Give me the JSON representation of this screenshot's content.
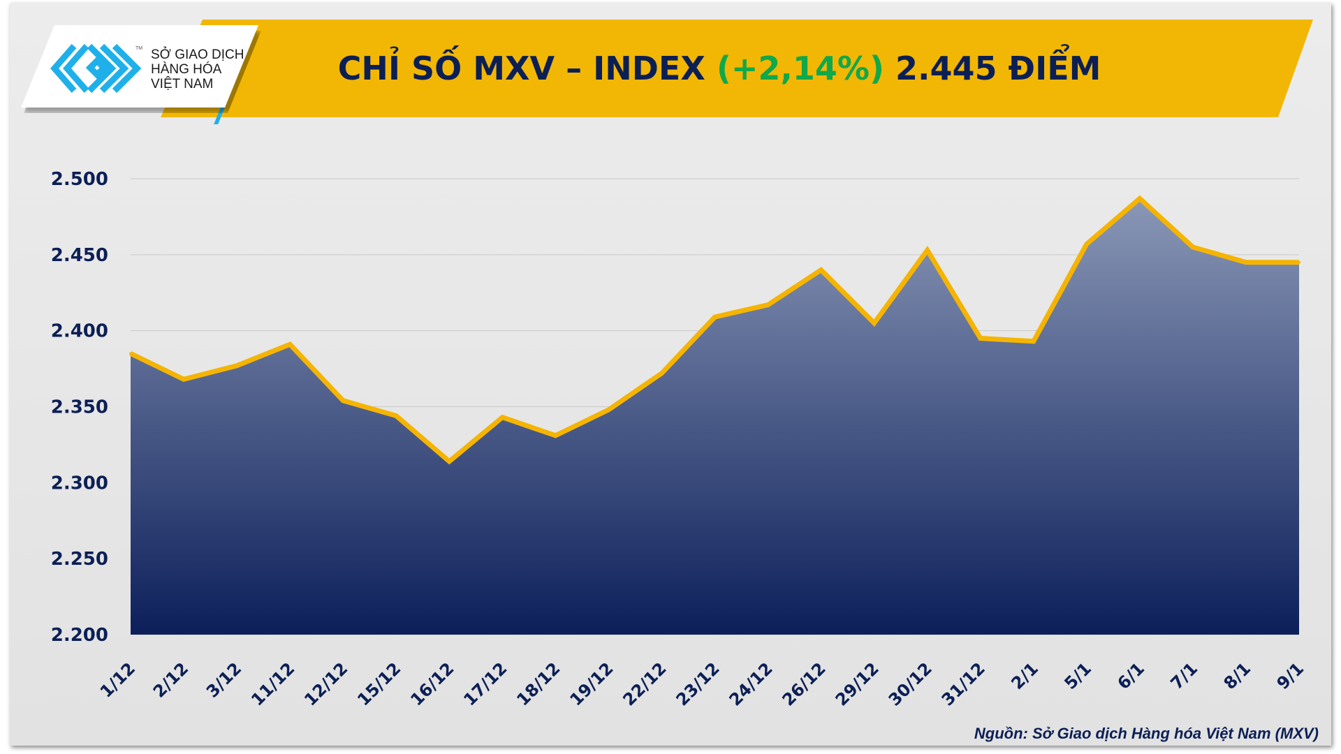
{
  "logo": {
    "line1": "SỞ GIAO DỊCH",
    "line2": "HÀNG HÓA",
    "line3": "VIỆT NAM",
    "tm": "TM"
  },
  "header": {
    "prefix": "CHỈ SỐ MXV – INDEX ",
    "change": "(+2,14%)",
    "suffix": " 2.445 ĐIỂM"
  },
  "source": "Nguồn: Sở Giao dịch Hàng hóa Việt Nam (MXV)",
  "colors": {
    "banner": "#f2b705",
    "title": "#0c1f55",
    "change": "#10a84a",
    "line": "#f5b400",
    "area_top": "#8a97b6",
    "area_bottom": "#0c1f5a",
    "logo_blue": "#1fb0ea"
  },
  "chart_data": {
    "type": "area",
    "title": "CHỈ SỐ MXV – INDEX (+2,14%) 2.445 ĐIỂM",
    "categories": [
      "1/12",
      "2/12",
      "3/12",
      "11/12",
      "12/12",
      "15/12",
      "16/12",
      "17/12",
      "18/12",
      "19/12",
      "22/12",
      "23/12",
      "24/12",
      "26/12",
      "29/12",
      "30/12",
      "31/12",
      "2/1",
      "5/1",
      "6/1",
      "7/1",
      "8/1",
      "9/1"
    ],
    "values": [
      2385,
      2368,
      2377,
      2391,
      2354,
      2344,
      2314,
      2343,
      2331,
      2348,
      2372,
      2409,
      2417,
      2440,
      2405,
      2453,
      2395,
      2393,
      2457,
      2487,
      2455,
      2445,
      2445
    ],
    "yticks": [
      "2.200",
      "2.250",
      "2.300",
      "2.350",
      "2.400",
      "2.450",
      "2.500"
    ],
    "ylim": [
      2200,
      2500
    ],
    "grid": true,
    "legend": "none"
  }
}
